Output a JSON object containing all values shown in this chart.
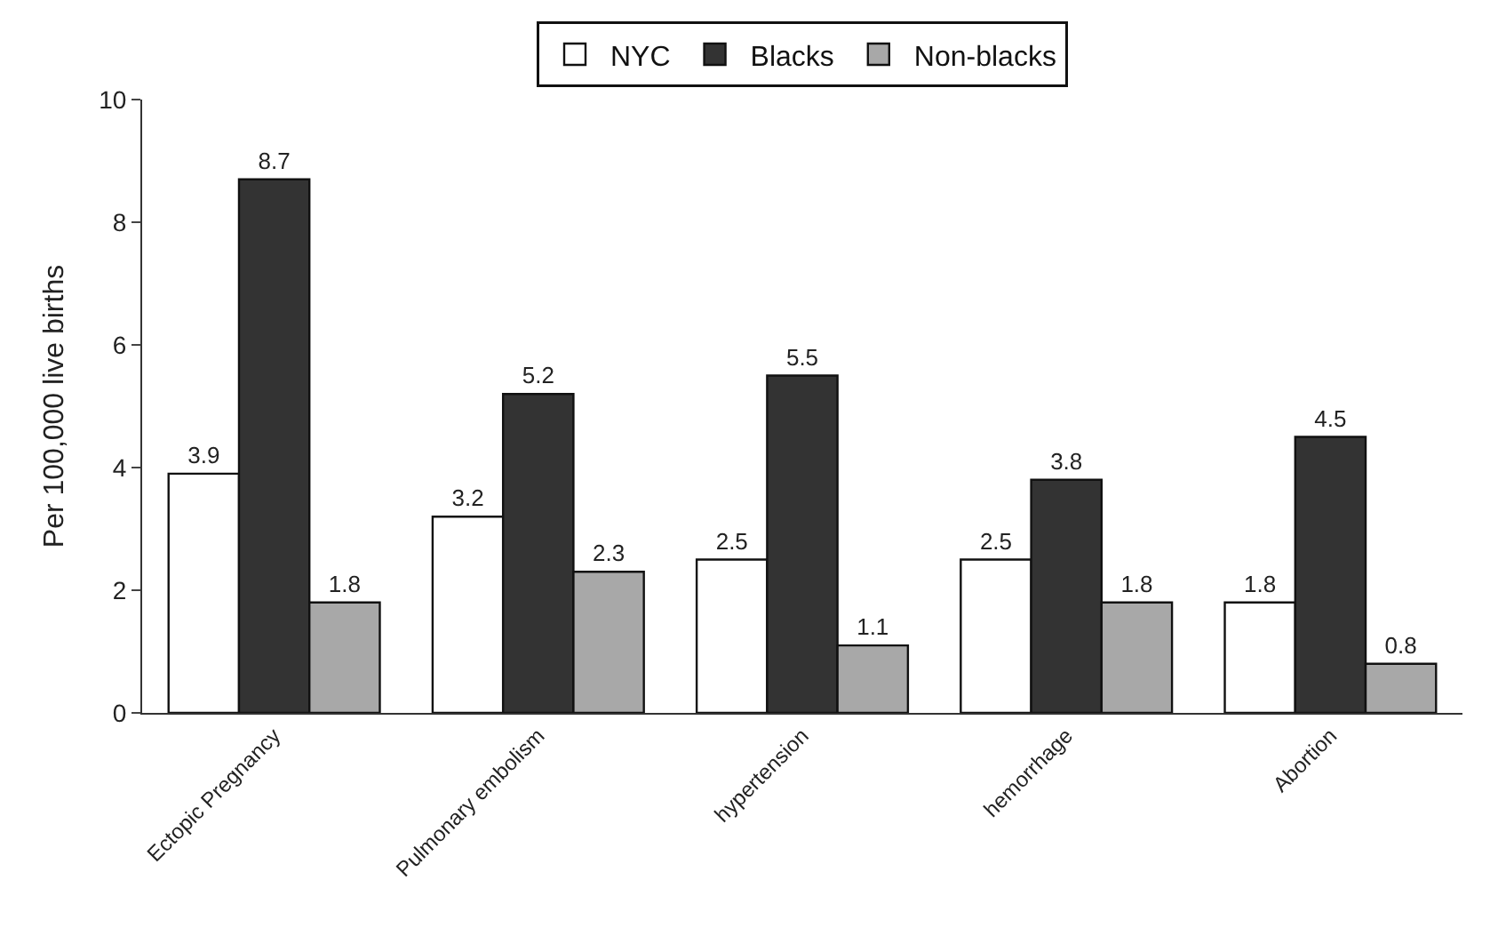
{
  "chart_data": {
    "type": "bar",
    "ylabel": "Per 100,000 live births",
    "categories": [
      "Ectopic Pregnancy",
      "Pulmonary embolism",
      "hypertension",
      "hemorrhage",
      "Abortion"
    ],
    "series": [
      {
        "name": "NYC",
        "color": "#ffffff",
        "values": [
          3.9,
          3.2,
          2.5,
          2.5,
          1.8
        ]
      },
      {
        "name": "Blacks",
        "color": "#333333",
        "values": [
          8.7,
          5.2,
          5.5,
          3.8,
          4.5
        ]
      },
      {
        "name": "Non-blacks",
        "color": "#a8a8a8",
        "values": [
          1.8,
          2.3,
          1.1,
          1.8,
          0.8
        ]
      }
    ],
    "ylim": [
      0,
      10
    ],
    "yticks": [
      0,
      2,
      4,
      6,
      8,
      10
    ],
    "legend": "top",
    "data_labels": true
  }
}
